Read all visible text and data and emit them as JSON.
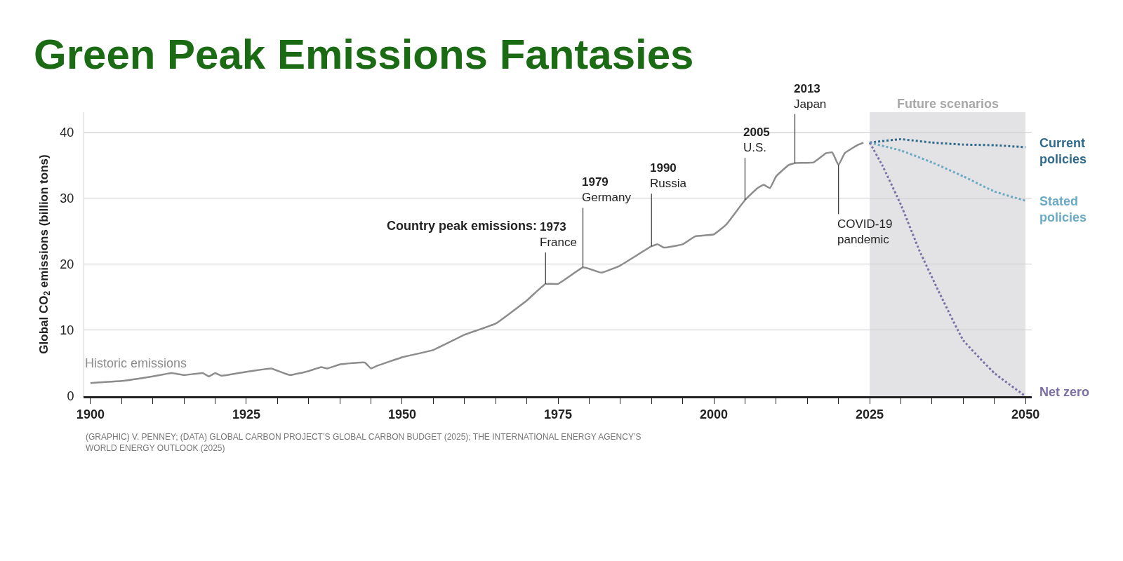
{
  "chart_data": {
    "type": "line",
    "title": "Green Peak Emissions Fantasies",
    "ylabel": "Global CO$_{2}$ emissions (billion tons)",
    "xlim": [
      1899,
      2051
    ],
    "xticks": [
      1900,
      {
        "value": 1905,
        "label": null
      },
      {
        "value": 1910,
        "label": null
      },
      {
        "value": 1915,
        "label": null
      },
      {
        "value": 1920,
        "label": null
      },
      1925,
      {
        "value": 1930,
        "label": null
      },
      {
        "value": 1935,
        "label": null
      },
      {
        "value": 1940,
        "label": null
      },
      {
        "value": 1945,
        "label": null
      },
      1950,
      {
        "value": 1955,
        "label": null
      },
      {
        "value": 1960,
        "label": null
      },
      {
        "value": 1965,
        "label": null
      },
      {
        "value": 1970,
        "label": null
      },
      1975,
      {
        "value": 1980,
        "label": null
      },
      {
        "value": 1985,
        "label": null
      },
      {
        "value": 1990,
        "label": null
      },
      {
        "value": 1995,
        "label": null
      },
      2000,
      {
        "value": 2005,
        "label": null
      },
      {
        "value": 2010,
        "label": null
      },
      {
        "value": 2015,
        "label": null
      },
      {
        "value": 2020,
        "label": null
      },
      2025,
      {
        "value": 2030,
        "label": null
      },
      {
        "value": 2035,
        "label": null
      },
      {
        "value": 2040,
        "label": null
      },
      {
        "value": 2045,
        "label": null
      },
      2050
    ],
    "ylim": [
      0,
      43
    ],
    "yticks": [
      0,
      10,
      20,
      30,
      40
    ],
    "grid": "y",
    "legend": false,
    "marker": "none",
    "bands": [
      {
        "axis": "x",
        "from": 2025,
        "to": 2050,
        "label": "Future scenarios",
        "color": "#e3e3e5"
      }
    ],
    "series": [
      {
        "name": "Historic emissions",
        "color": "#8c8c8c",
        "line_style": "solid",
        "x": [
          1900,
          1905,
          1910,
          1913,
          1915,
          1918,
          1919,
          1920,
          1921,
          1925,
          1928,
          1929,
          1932,
          1935,
          1937,
          1938,
          1940,
          1944,
          1945,
          1946,
          1950,
          1955,
          1960,
          1965,
          1970,
          1973,
          1975,
          1979,
          1980,
          1982,
          1985,
          1990,
          1991,
          1992,
          1995,
          1997,
          2000,
          2002,
          2005,
          2007,
          2008,
          2009,
          2010,
          2012,
          2013,
          2016,
          2018,
          2019,
          2020,
          2021,
          2023,
          2024
        ],
        "values": [
          2.0,
          2.3,
          3.0,
          3.5,
          3.2,
          3.5,
          3.0,
          3.5,
          3.1,
          3.7,
          4.1,
          4.2,
          3.2,
          3.8,
          4.4,
          4.2,
          4.8,
          5.1,
          4.2,
          4.6,
          5.9,
          7.0,
          9.3,
          11.0,
          14.5,
          17.0,
          17.0,
          19.5,
          19.3,
          18.7,
          19.8,
          22.7,
          23.0,
          22.5,
          23.0,
          24.2,
          24.5,
          26.0,
          29.7,
          31.5,
          32.0,
          31.5,
          33.3,
          35.0,
          35.3,
          35.4,
          36.8,
          36.9,
          35.0,
          36.8,
          38.0,
          38.4
        ]
      },
      {
        "name": "Current policies",
        "color": "#2f6a8c",
        "line_style": "dotted",
        "x": [
          2025,
          2030,
          2035,
          2040,
          2045,
          2050
        ],
        "values": [
          38.4,
          38.9,
          38.4,
          38.1,
          38.0,
          37.7
        ]
      },
      {
        "name": "Stated policies",
        "color": "#6aaac4",
        "line_style": "dotted",
        "x": [
          2025,
          2030,
          2035,
          2040,
          2045,
          2050
        ],
        "values": [
          38.4,
          37.2,
          35.4,
          33.3,
          31.0,
          29.6
        ]
      },
      {
        "name": "Net zero",
        "color": "#7b6fa6",
        "line_style": "dotted",
        "x": [
          2025,
          2027,
          2030,
          2033,
          2036,
          2040,
          2045,
          2050
        ],
        "values": [
          38.4,
          35.0,
          29.0,
          22.0,
          16.0,
          8.5,
          3.5,
          0
        ]
      }
    ],
    "annotations": [
      "Country peak emissions:",
      {
        "text": "1973\nFrance",
        "x": 1973,
        "y": 17.0
      },
      {
        "text": "1979\nGermany",
        "x": 1979,
        "y": 19.5
      },
      {
        "text": "1990\nRussia",
        "x": 1990,
        "y": 22.7
      },
      {
        "text": "2005\nU.S.",
        "x": 2005,
        "y": 29.7
      },
      {
        "text": "2013\nJapan",
        "x": 2013,
        "y": 35.3
      },
      {
        "text": "COVID-19\npandemic",
        "x": 2020,
        "y": 35.0
      },
      "(GRAPHIC) V. PENNEY; (DATA) GLOBAL CARBON PROJECT’S GLOBAL CARBON BUDGET (2025); THE INTERNATIONAL ENERGY AGENCY’S\nWORLD ENERGY OUTLOOK (2025)"
    ]
  }
}
